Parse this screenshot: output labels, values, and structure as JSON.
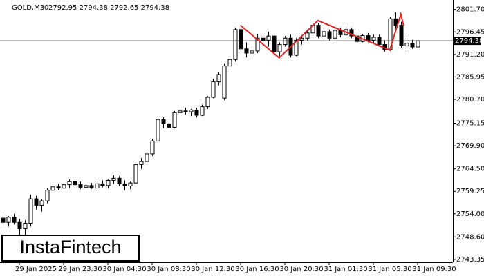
{
  "chart_data": {
    "type": "candlestick",
    "title": "GOLD,M30",
    "subtitle": "2792.95 2794.38 2792.65 2794.38",
    "watermark": "InstaFintech",
    "categories": [
      null,
      null,
      null,
      "29 Jan 2025",
      null,
      null,
      null,
      null,
      null,
      null,
      null,
      "29 Jan 23:30",
      null,
      null,
      null,
      null,
      null,
      null,
      null,
      "30 Jan 04:30",
      null,
      null,
      null,
      null,
      null,
      null,
      null,
      "30 Jan 08:30",
      null,
      null,
      null,
      null,
      null,
      null,
      null,
      "30 Jan 12:30",
      null,
      null,
      null,
      null,
      null,
      null,
      null,
      "30 Jan 16:30",
      null,
      null,
      null,
      null,
      null,
      null,
      null,
      "30 Jan 20:30",
      null,
      null,
      null,
      null,
      null,
      null,
      null,
      "31 Jan 01:30",
      null,
      null,
      null,
      null,
      null,
      null,
      null,
      "31 Jan 05:30",
      null,
      null,
      null,
      null,
      null,
      null,
      null,
      "31 Jan 09:30"
    ],
    "open": [
      2753.0,
      2752.0,
      2753.2,
      2752.0,
      2750.5,
      2751.8,
      2757.5,
      2756.0,
      2757.0,
      2759.5,
      2760.3,
      2760.0,
      2760.8,
      2761.5,
      2760.8,
      2760.2,
      2760.6,
      2760.0,
      2761.0,
      2760.6,
      2761.8,
      2762.3,
      2761.0,
      2760.5,
      2761.2,
      2765.5,
      2766.2,
      2768.0,
      2771.0,
      2776.0,
      2775.0,
      2774.2,
      2777.6,
      2778.0,
      2777.8,
      2778.2,
      2777.0,
      2779.0,
      2781.2,
      2784.8,
      2781.0,
      2788.5,
      2790.0,
      2797.0,
      2792.5,
      2791.5,
      2792.0,
      2795.0,
      2794.5,
      2795.5,
      2791.8,
      2793.5,
      2795.0,
      2791.0,
      2794.5,
      2795.0,
      2796.2,
      2798.0,
      2795.5,
      2796.5,
      2795.0,
      2796.8,
      2795.8,
      2797.0,
      2795.5,
      2794.2,
      2795.6,
      2794.5,
      2795.2,
      2793.5,
      2792.4,
      2799.5,
      2798.0,
      2793.2,
      2793.8,
      2792.95
    ],
    "high": [
      2754.5,
      2753.5,
      2754.0,
      2752.8,
      2752.5,
      2758.5,
      2758.2,
      2757.5,
      2760.0,
      2761.0,
      2761.0,
      2761.2,
      2762.0,
      2762.5,
      2761.5,
      2761.0,
      2761.2,
      2761.5,
      2761.8,
      2762.0,
      2763.0,
      2762.8,
      2761.8,
      2761.5,
      2765.8,
      2767.0,
      2768.5,
      2771.5,
      2776.5,
      2776.5,
      2776.2,
      2778.0,
      2778.5,
      2778.8,
      2778.5,
      2778.8,
      2779.5,
      2781.5,
      2785.5,
      2787.0,
      2789.0,
      2791.0,
      2797.5,
      2798.0,
      2794.0,
      2793.0,
      2796.0,
      2796.0,
      2796.5,
      2796.0,
      2794.0,
      2795.5,
      2795.8,
      2795.0,
      2795.5,
      2797.0,
      2799.0,
      2798.5,
      2797.0,
      2797.0,
      2797.2,
      2797.5,
      2797.8,
      2797.5,
      2796.5,
      2796.0,
      2796.2,
      2795.8,
      2795.8,
      2794.5,
      2800.0,
      2801.0,
      2798.8,
      2795.0,
      2794.6,
      2794.38
    ],
    "low": [
      2750.5,
      2751.0,
      2751.5,
      2749.0,
      2746.5,
      2751.0,
      2755.0,
      2754.5,
      2756.5,
      2759.0,
      2759.5,
      2759.8,
      2760.0,
      2760.5,
      2759.8,
      2759.5,
      2759.8,
      2759.6,
      2760.2,
      2760.0,
      2761.0,
      2760.5,
      2759.5,
      2759.8,
      2761.0,
      2764.5,
      2765.8,
      2767.5,
      2770.5,
      2774.0,
      2773.5,
      2774.0,
      2777.0,
      2777.2,
      2776.8,
      2776.5,
      2776.8,
      2778.5,
      2781.0,
      2784.0,
      2780.5,
      2787.5,
      2789.5,
      2791.5,
      2790.5,
      2790.0,
      2791.5,
      2793.5,
      2793.0,
      2791.0,
      2790.8,
      2793.0,
      2790.5,
      2790.8,
      2793.5,
      2794.5,
      2795.5,
      2795.0,
      2794.8,
      2794.5,
      2794.5,
      2795.2,
      2795.5,
      2795.0,
      2793.8,
      2794.0,
      2794.0,
      2793.8,
      2793.0,
      2791.8,
      2792.0,
      2797.0,
      2792.8,
      2791.8,
      2792.5,
      2792.65
    ],
    "close": [
      2752.0,
      2753.2,
      2752.0,
      2750.5,
      2751.8,
      2757.5,
      2756.0,
      2757.0,
      2759.5,
      2760.3,
      2760.0,
      2760.8,
      2761.5,
      2760.8,
      2760.2,
      2760.6,
      2760.0,
      2761.0,
      2760.6,
      2761.8,
      2762.3,
      2761.0,
      2760.5,
      2761.2,
      2765.5,
      2766.2,
      2768.0,
      2771.0,
      2776.0,
      2775.0,
      2774.2,
      2777.6,
      2778.0,
      2777.8,
      2778.2,
      2777.0,
      2779.0,
      2781.2,
      2784.8,
      2786.5,
      2788.5,
      2790.0,
      2797.0,
      2792.5,
      2791.5,
      2792.0,
      2795.0,
      2794.5,
      2795.5,
      2791.8,
      2793.5,
      2795.0,
      2791.0,
      2794.5,
      2795.0,
      2796.2,
      2798.0,
      2795.5,
      2796.5,
      2795.0,
      2796.8,
      2795.8,
      2797.0,
      2795.5,
      2794.2,
      2795.6,
      2794.5,
      2795.2,
      2793.5,
      2792.4,
      2799.5,
      2798.0,
      2793.2,
      2793.8,
      2792.95,
      2794.38
    ],
    "up_color": "#ffffff",
    "down_color": "#000000",
    "pattern": {
      "color": "#e02424",
      "x": [
        42.9,
        49.9,
        56.9,
        69.9,
        71.9,
        72.4
      ],
      "y": [
        2798.0,
        2790.4,
        2799.1,
        2792.2,
        2800.6,
        2797.9
      ]
    },
    "current_price": 2794.38,
    "ylim": [
      2742.7,
      2803.9
    ],
    "yticks": [
      2743.35,
      {
        "value": 2748.6,
        "label": "2748.60"
      },
      {
        "value": 2754.0,
        "label": "2754.00"
      },
      2759.25,
      {
        "value": 2764.5,
        "label": "2764.50"
      },
      {
        "value": 2769.9,
        "label": "2769.90"
      },
      2775.15,
      {
        "value": 2780.7,
        "label": "2780.70"
      },
      2785.95,
      {
        "value": 2791.2,
        "label": "2791.20"
      },
      2796.45,
      {
        "value": 2801.7,
        "label": "2801.70"
      }
    ]
  }
}
